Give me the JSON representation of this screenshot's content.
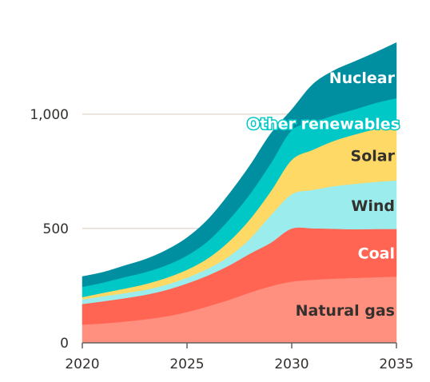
{
  "chart_data": {
    "type": "area",
    "stacked": true,
    "x": [
      2020,
      2021,
      2022,
      2023,
      2024,
      2025,
      2026,
      2027,
      2028,
      2029,
      2030,
      2031,
      2032,
      2033,
      2034,
      2035
    ],
    "series": [
      {
        "name": "Natural gas",
        "color": "#ff8f7e",
        "label_color": "#33302e",
        "values": [
          80,
          85,
          93,
          103,
          116,
          135,
          160,
          188,
          220,
          248,
          268,
          276,
          281,
          284,
          287,
          290
        ]
      },
      {
        "name": "Coal",
        "color": "#ff6552",
        "label_color": "#ffffff",
        "values": [
          90,
          97,
          102,
          107,
          115,
          125,
          135,
          150,
          170,
          190,
          232,
          225,
          218,
          213,
          211,
          208
        ]
      },
      {
        "name": "Wind",
        "color": "#9aeced",
        "label_color": "#33302e",
        "values": [
          20,
          22,
          22,
          22,
          23,
          25,
          30,
          40,
          65,
          120,
          150,
          168,
          186,
          198,
          206,
          212
        ]
      },
      {
        "name": "Solar",
        "color": "#ffd966",
        "label_color": "#33302e",
        "values": [
          10,
          15,
          20,
          25,
          30,
          35,
          45,
          65,
          85,
          105,
          150,
          175,
          198,
          216,
          231,
          243
        ]
      },
      {
        "name": "Other renewables",
        "color": "#00c8c7",
        "label_color": "#ffffff",
        "values": [
          45,
          45,
          50,
          52,
          55,
          62,
          75,
          95,
          110,
          122,
          130,
          119,
          112,
          110,
          114,
          117
        ]
      },
      {
        "name": "Nuclear",
        "color": "#008fa1",
        "label_color": "#ffffff",
        "values": [
          45,
          45,
          50,
          56,
          66,
          78,
          95,
          112,
          125,
          130,
          90,
          167,
          195,
          209,
          221,
          243
        ]
      }
    ],
    "xticks": [
      "2020",
      "2025",
      "2030",
      "2035"
    ],
    "yticks": [
      "0",
      "500",
      "1,000"
    ],
    "ylim": [
      0,
      1300
    ],
    "xlim": [
      2020,
      2035
    ],
    "grid": "horizontal",
    "legend": "inline labels on areas, right side"
  }
}
